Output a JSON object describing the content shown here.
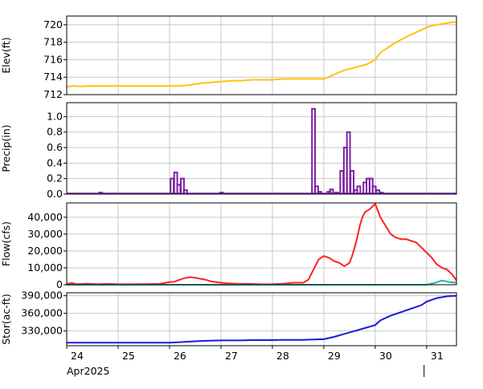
{
  "chart_data": [
    {
      "type": "line",
      "ylabel": "Elev(ft)",
      "ylim": [
        712,
        721
      ],
      "yticks": [
        712,
        714,
        716,
        718,
        720
      ],
      "ytick_labels": [
        "712",
        "714",
        "716",
        "718",
        "720"
      ],
      "xlim": [
        24,
        31.58
      ],
      "grid": true,
      "series": [
        {
          "color": "#ffc20e",
          "x": [
            24,
            24.15,
            24.25,
            24.5,
            25,
            25.5,
            26,
            26.2,
            26.4,
            26.6,
            26.8,
            27,
            27.2,
            27.4,
            27.6,
            27.8,
            28,
            28.2,
            28.4,
            28.6,
            28.8,
            29.0,
            29.2,
            29.4,
            29.6,
            29.85,
            30.0,
            30.1,
            30.3,
            30.5,
            30.7,
            30.9,
            31.0,
            31.1,
            31.3,
            31.5,
            31.58
          ],
          "values": [
            712.9,
            713.0,
            712.95,
            713.0,
            713.0,
            713.0,
            713.0,
            713.0,
            713.1,
            713.3,
            713.4,
            713.5,
            713.6,
            713.6,
            713.7,
            713.7,
            713.7,
            713.8,
            713.8,
            713.8,
            713.8,
            713.8,
            714.3,
            714.8,
            715.1,
            715.5,
            716.0,
            716.8,
            717.6,
            718.3,
            718.9,
            719.4,
            719.7,
            719.9,
            720.1,
            720.3,
            720.3
          ]
        }
      ]
    },
    {
      "type": "bar",
      "ylabel": "Precip(in)",
      "ylim": [
        0,
        1.18
      ],
      "yticks": [
        0,
        0.2,
        0.4,
        0.6,
        0.8,
        1.0
      ],
      "ytick_labels": [
        "0.0",
        "0.2",
        "0.4",
        "0.6",
        "0.8",
        "1.0"
      ],
      "xlim": [
        24,
        31.58
      ],
      "grid": true,
      "style": "step",
      "series": [
        {
          "color": "#7b1fa2",
          "x": [
            24.66,
            26.05,
            26.12,
            26.18,
            26.25,
            26.31,
            27.01,
            28.8,
            28.86,
            28.92,
            29.1,
            29.15,
            29.25,
            29.35,
            29.42,
            29.48,
            29.55,
            29.62,
            29.68,
            29.8,
            29.86,
            29.92,
            29.98,
            30.05,
            30.12
          ],
          "values": [
            0.02,
            0.2,
            0.28,
            0.12,
            0.2,
            0.05,
            0.02,
            1.1,
            0.1,
            0.03,
            0.03,
            0.06,
            0.02,
            0.3,
            0.6,
            0.8,
            0.3,
            0.05,
            0.1,
            0.15,
            0.2,
            0.2,
            0.1,
            0.05,
            0.02
          ],
          "width": 0.06
        }
      ]
    },
    {
      "type": "line",
      "ylabel": "Flow(cfs)",
      "ylim": [
        0,
        48500
      ],
      "yticks": [
        0,
        10000,
        20000,
        30000,
        40000
      ],
      "ytick_labels": [
        "0",
        "10,000",
        "20,000",
        "30,000",
        "40,000"
      ],
      "xlim": [
        24,
        31.58
      ],
      "grid": true,
      "series": [
        {
          "color": "#ff2020",
          "x": [
            24.0,
            24.1,
            24.2,
            24.4,
            24.6,
            24.8,
            25.0,
            25.5,
            25.8,
            26.0,
            26.1,
            26.2,
            26.3,
            26.4,
            26.5,
            26.6,
            26.7,
            26.8,
            26.9,
            27.0,
            27.1,
            27.3,
            27.5,
            27.8,
            28.0,
            28.2,
            28.4,
            28.6,
            28.7,
            28.75,
            28.8,
            28.85,
            28.9,
            29.0,
            29.1,
            29.2,
            29.3,
            29.35,
            29.4,
            29.45,
            29.5,
            29.55,
            29.6,
            29.65,
            29.7,
            29.75,
            29.8,
            29.9,
            30.0,
            30.05,
            30.1,
            30.2,
            30.3,
            30.4,
            30.5,
            30.6,
            30.7,
            30.8,
            30.9,
            31.0,
            31.1,
            31.2,
            31.3,
            31.4,
            31.5
          ],
          "values": [
            500,
            1000,
            400,
            600,
            300,
            500,
            300,
            400,
            500,
            1500,
            1800,
            3000,
            4000,
            4500,
            4200,
            3500,
            3000,
            2000,
            1500,
            1200,
            900,
            600,
            500,
            300,
            400,
            600,
            1200,
            1200,
            3000,
            6000,
            9000,
            12000,
            15000,
            17000,
            16000,
            14000,
            13000,
            12000,
            11000,
            12000,
            13000,
            17000,
            22000,
            28000,
            35000,
            40000,
            43000,
            45000,
            48000,
            44000,
            40000,
            35000,
            30000,
            28000,
            27000,
            27000,
            26000,
            25000,
            22000,
            19000,
            16000,
            12000,
            10000,
            9000,
            6000
          ],
          "x_extra": [
            31.58
          ],
          "values_extra": [
            2500
          ]
        },
        {
          "color": "#20b2aa",
          "x": [
            24,
            27,
            28.5,
            29.4,
            30.5,
            31.0,
            31.15,
            31.3,
            31.45,
            31.58
          ],
          "values": [
            0,
            0,
            0,
            0,
            0,
            0,
            1000,
            2500,
            1500,
            1200
          ]
        }
      ]
    },
    {
      "type": "line",
      "ylabel": "Stor(ac-ft)",
      "ylim": [
        305000,
        395000
      ],
      "yticks": [
        330000,
        360000,
        390000
      ],
      "ytick_labels": [
        "330,000",
        "360,000",
        "390,000"
      ],
      "xlim": [
        24,
        31.58
      ],
      "xticks": [
        24,
        25,
        26,
        27,
        28,
        29,
        30,
        31
      ],
      "xtick_labels": [
        "24",
        "25",
        "26",
        "27",
        "28",
        "29",
        "30",
        "31"
      ],
      "xlabel": "Apr2025",
      "grid": true,
      "series": [
        {
          "color": "#1a1ad4",
          "x": [
            24,
            24.5,
            25,
            25.5,
            26,
            26.2,
            26.4,
            26.6,
            26.8,
            27,
            27.2,
            27.4,
            27.6,
            27.8,
            28,
            28.2,
            28.4,
            28.6,
            28.8,
            29.0,
            29.2,
            29.4,
            29.6,
            29.8,
            30.0,
            30.1,
            30.3,
            30.5,
            30.7,
            30.9,
            31.0,
            31.2,
            31.4,
            31.58
          ],
          "values": [
            310000,
            310000,
            310000,
            310000,
            310000,
            311000,
            312000,
            313000,
            313500,
            314000,
            314000,
            314000,
            314500,
            314500,
            314500,
            315000,
            315000,
            315000,
            315500,
            316000,
            320000,
            325000,
            330000,
            335000,
            340000,
            348000,
            356000,
            362000,
            368000,
            374000,
            380000,
            386000,
            389000,
            390000
          ]
        }
      ]
    }
  ]
}
